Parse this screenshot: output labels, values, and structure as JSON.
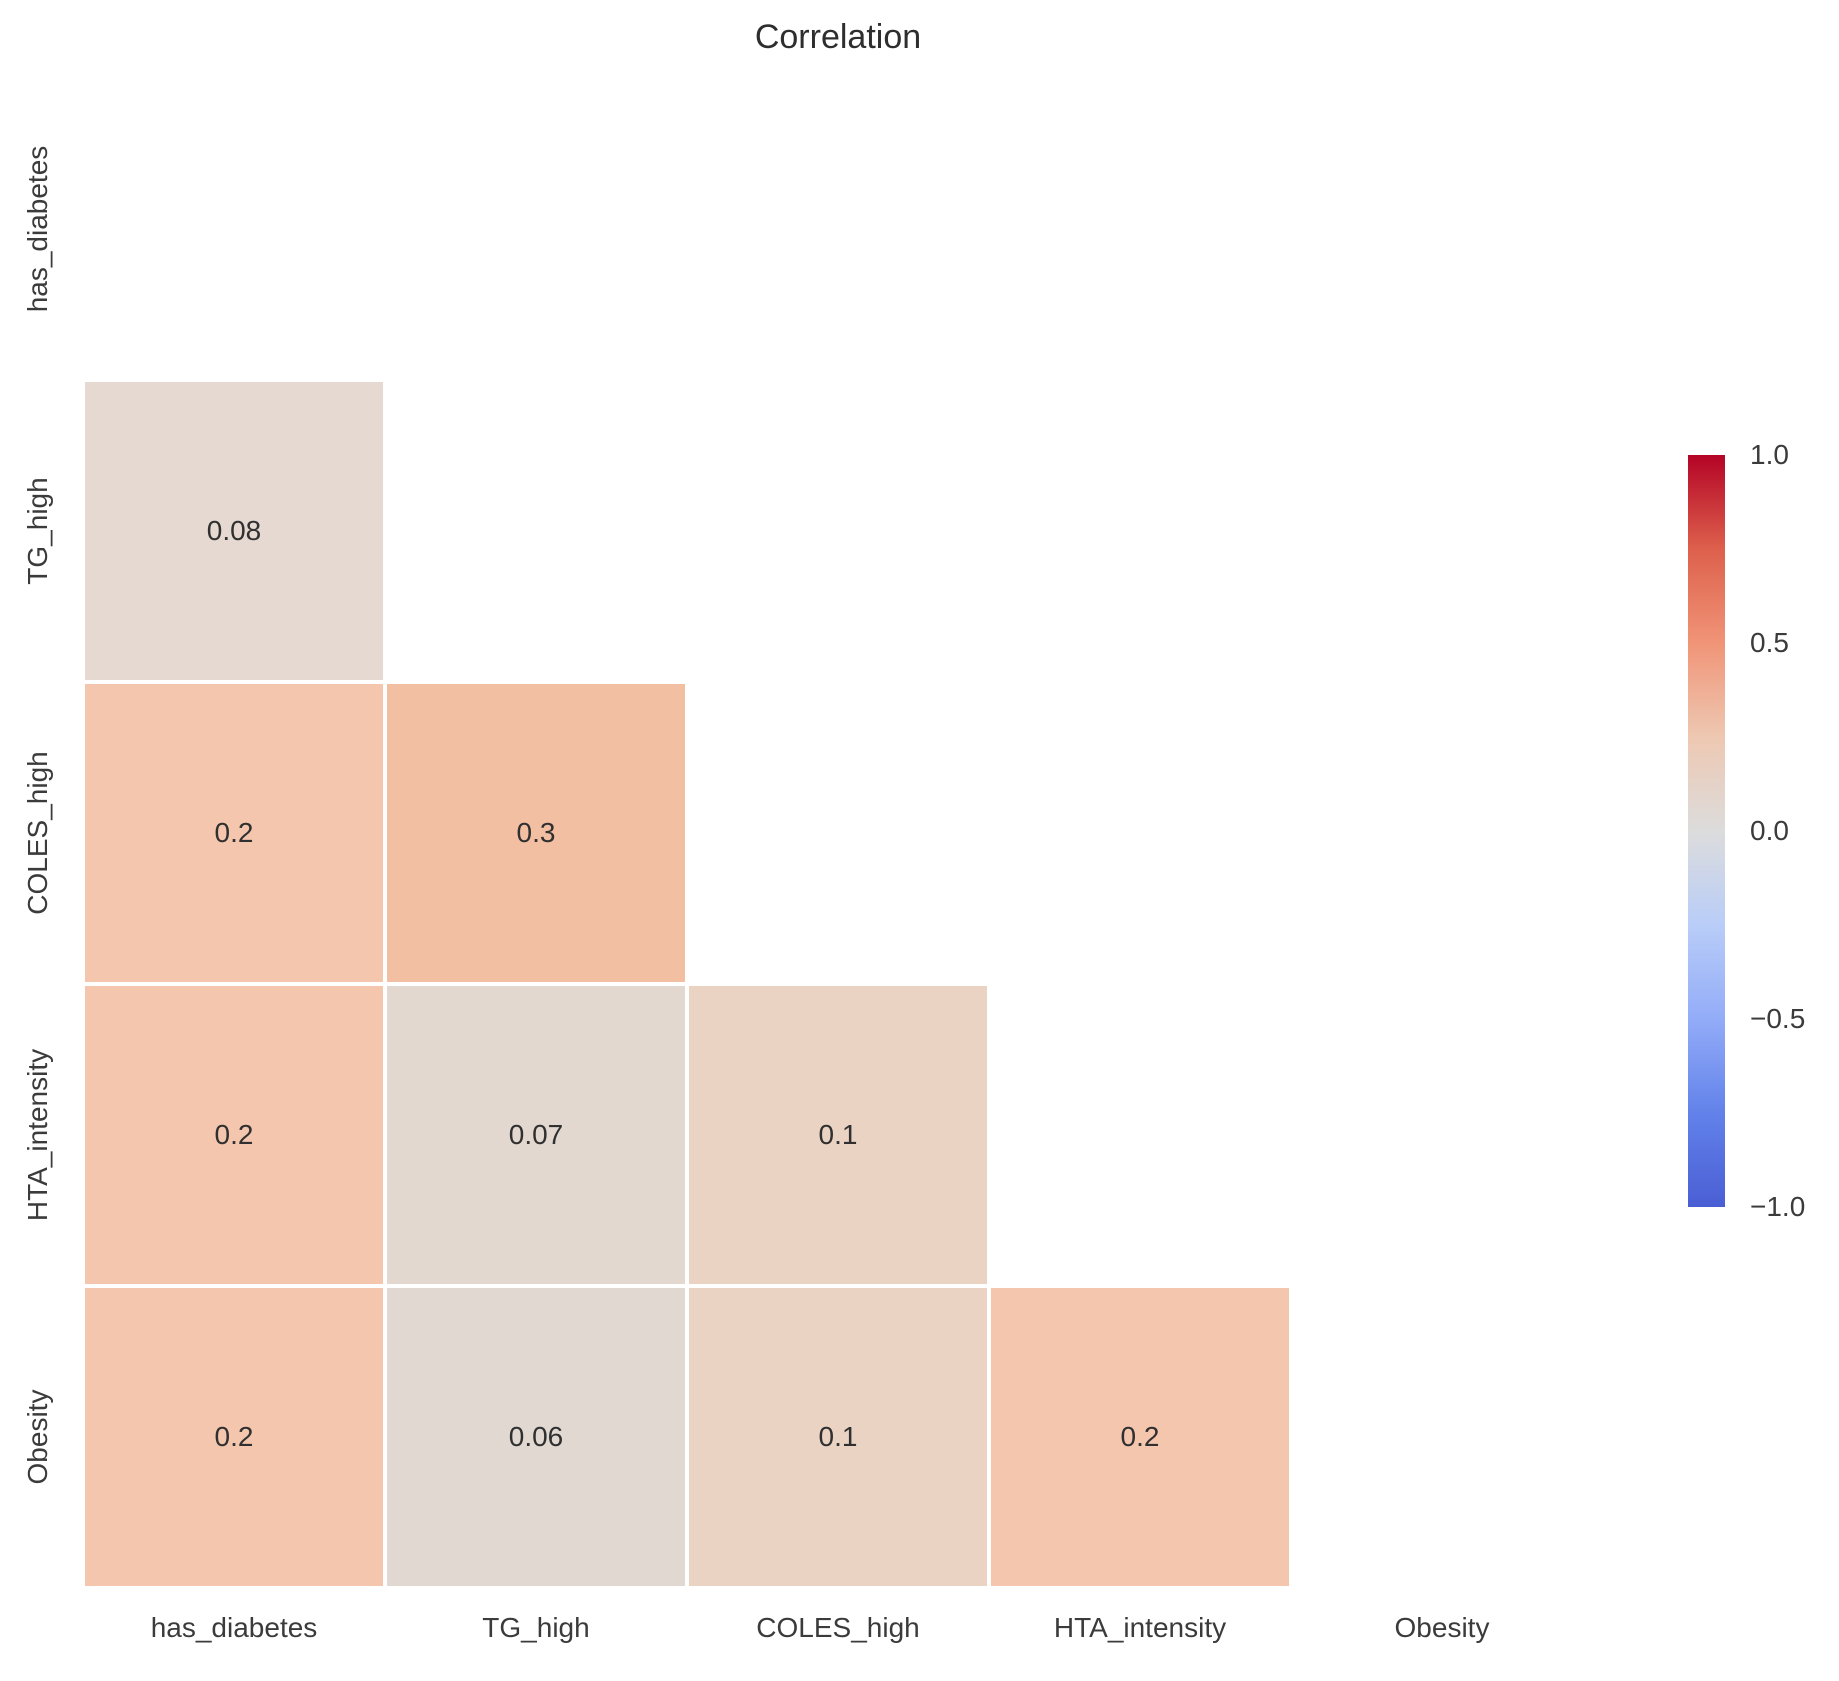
{
  "title": "Correlation",
  "chart_data": {
    "type": "heatmap",
    "title": "Correlation",
    "subtitle": "",
    "categories": [
      "has_diabetes",
      "TG_high",
      "COLES_high",
      "HTA_intensity",
      "Obesity"
    ],
    "mask": "upper triangle and diagonal hidden (only cells with row > col are drawn)",
    "cells": [
      {
        "row": 1,
        "col": 0,
        "value": 0.08,
        "label": "0.08",
        "color": "#e5d9d1"
      },
      {
        "row": 2,
        "col": 0,
        "value": 0.2,
        "label": "0.2",
        "color": "#f4c6ae"
      },
      {
        "row": 2,
        "col": 1,
        "value": 0.3,
        "label": "0.3",
        "color": "#f3bfa3"
      },
      {
        "row": 3,
        "col": 0,
        "value": 0.2,
        "label": "0.2",
        "color": "#f4c6ae"
      },
      {
        "row": 3,
        "col": 1,
        "value": 0.07,
        "label": "0.07",
        "color": "#e3d8d0"
      },
      {
        "row": 3,
        "col": 2,
        "value": 0.1,
        "label": "0.1",
        "color": "#ebd3c3"
      },
      {
        "row": 4,
        "col": 0,
        "value": 0.2,
        "label": "0.2",
        "color": "#f4c6ae"
      },
      {
        "row": 4,
        "col": 1,
        "value": 0.06,
        "label": "0.06",
        "color": "#e2d8d2"
      },
      {
        "row": 4,
        "col": 2,
        "value": 0.1,
        "label": "0.1",
        "color": "#ebd3c3"
      },
      {
        "row": 4,
        "col": 3,
        "value": 0.2,
        "label": "0.2",
        "color": "#f4c6ae"
      }
    ],
    "colorbar": {
      "vmin": -1.0,
      "vmax": 1.0,
      "ticks": [
        "1.0",
        "0.5",
        "0.0",
        "−0.5",
        "−1.0"
      ],
      "gradient_stops_top_to_bottom": [
        "#b40426",
        "#dd604c",
        "#f09477",
        "#eec8b2",
        "#dcdcdc",
        "#b9cdf8",
        "#93acf8",
        "#6282ea",
        "#4a5ed4"
      ]
    },
    "layout_hints": {
      "legend_position": "right colorbar",
      "grid": "off",
      "cell_annotation_color": "#303030",
      "tick_label_color": "#3b3b3b",
      "title_color": "#2e2e2e",
      "background": "#ffffff"
    }
  }
}
